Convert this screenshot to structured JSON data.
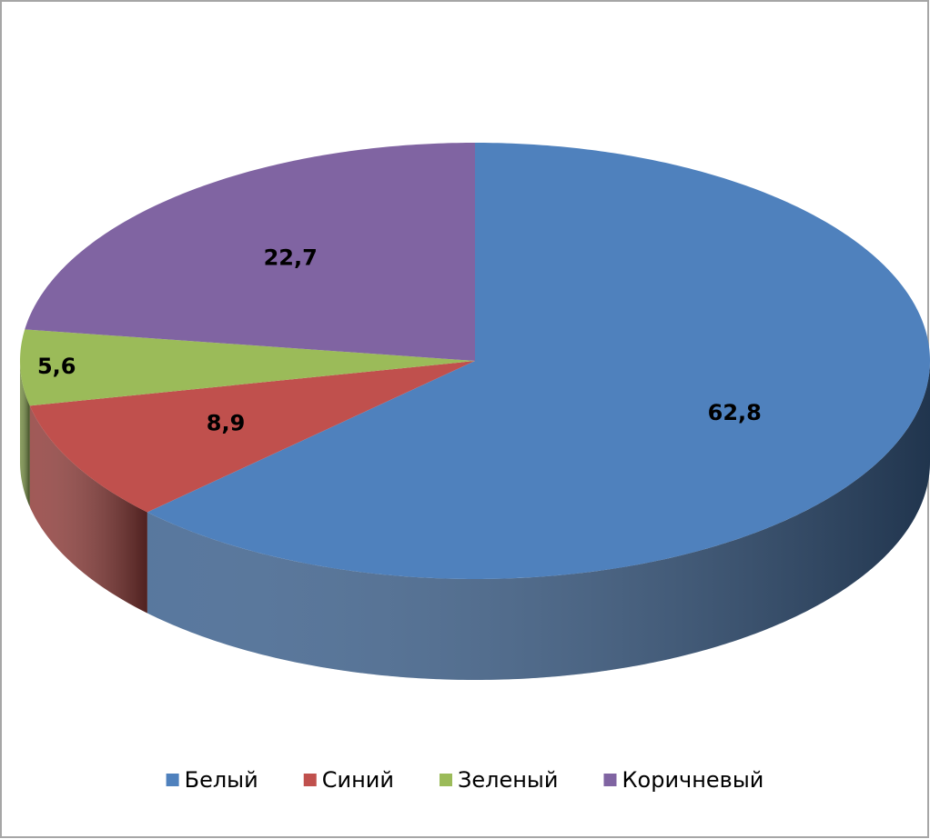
{
  "chart_data": {
    "type": "pie3d",
    "categories": [
      "Белый",
      "Синий",
      "Зеленый",
      "Коричневый"
    ],
    "values": [
      62.8,
      8.9,
      5.6,
      22.7
    ],
    "value_labels": [
      "62,8",
      "8,9",
      "5,6",
      "22,7"
    ],
    "colors": [
      "#4f81bd",
      "#c0504d",
      "#9bbb59",
      "#8064a2"
    ],
    "legend": "bottom"
  }
}
